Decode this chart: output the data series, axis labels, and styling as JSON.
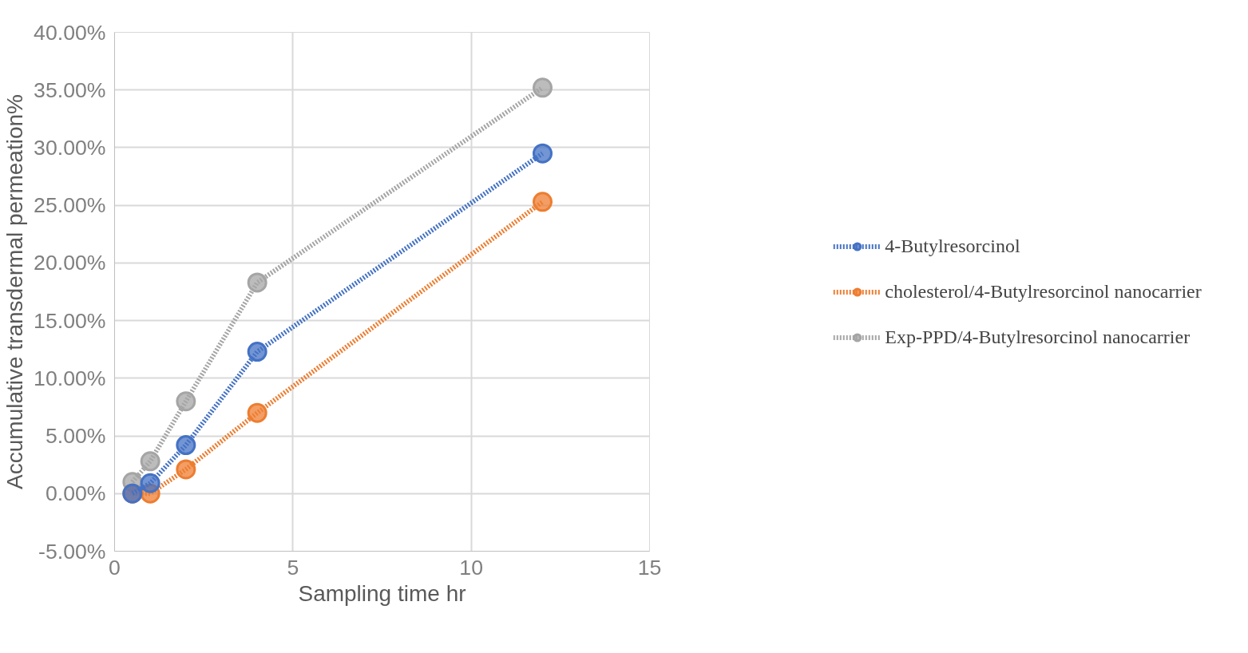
{
  "chart_data": {
    "type": "line",
    "xlabel": "Sampling time hr",
    "ylabel": "Accumulative transdermal permeation%",
    "x": [
      0.5,
      1,
      2,
      4,
      12
    ],
    "series": [
      {
        "name": "4-Butylresorcinol",
        "color": "#4472c4",
        "values": [
          0,
          0.9,
          4.2,
          12.3,
          29.5
        ]
      },
      {
        "name": "cholesterol/4-Butylresorcinol nanocarrier",
        "color": "#ed7d31",
        "values": [
          0,
          0,
          2.1,
          7.0,
          25.3
        ]
      },
      {
        "name": "Exp-PPD/4-Butylresorcinol nanocarrier",
        "color": "#a5a5a5",
        "values": [
          1.0,
          2.8,
          8.0,
          18.3,
          35.2
        ]
      }
    ],
    "xlim": [
      0,
      15
    ],
    "xticks": [
      0,
      5,
      10,
      15
    ],
    "ylim": [
      -5,
      40
    ],
    "yticks": [
      {
        "value": -5,
        "label": "-5.00%"
      },
      {
        "value": 0,
        "label": "0.00%"
      },
      {
        "value": 5,
        "label": "5.00%"
      },
      {
        "value": 10,
        "label": "10.00%"
      },
      {
        "value": 15,
        "label": "15.00%"
      },
      {
        "value": 20,
        "label": "20.00%"
      },
      {
        "value": 25,
        "label": "25.00%"
      },
      {
        "value": 30,
        "label": "30.00%"
      },
      {
        "value": 35,
        "label": "35.00%"
      },
      {
        "value": 40,
        "label": "40.00%"
      }
    ],
    "grid": true,
    "legend": "right",
    "marker": "circle",
    "line_style": "dotted"
  }
}
